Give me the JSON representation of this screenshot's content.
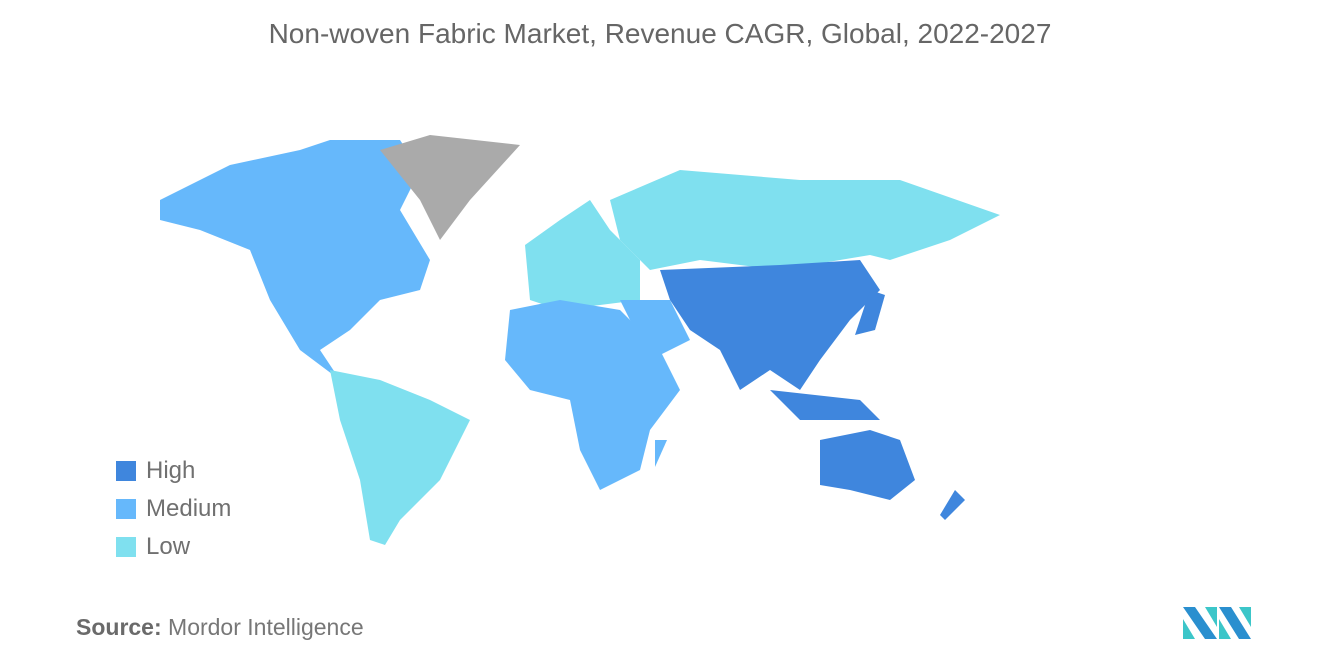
{
  "title": "Non-woven Fabric Market, Revenue CAGR, Global, 2022-2027",
  "legend": [
    {
      "label": "High",
      "color": "#3f86dd"
    },
    {
      "label": "Medium",
      "color": "#66b8fb"
    },
    {
      "label": "Low",
      "color": "#7fe0ef"
    }
  ],
  "no_data_color": "#aaaaaa",
  "regions": {
    "north_america": "Medium",
    "south_america": "Low",
    "europe": "Low",
    "russia": "Low",
    "africa": "Medium",
    "middle_east": "Medium",
    "asia_pacific": "High",
    "greenland": "No data"
  },
  "source": {
    "label": "Source:",
    "value": "Mordor Intelligence"
  }
}
